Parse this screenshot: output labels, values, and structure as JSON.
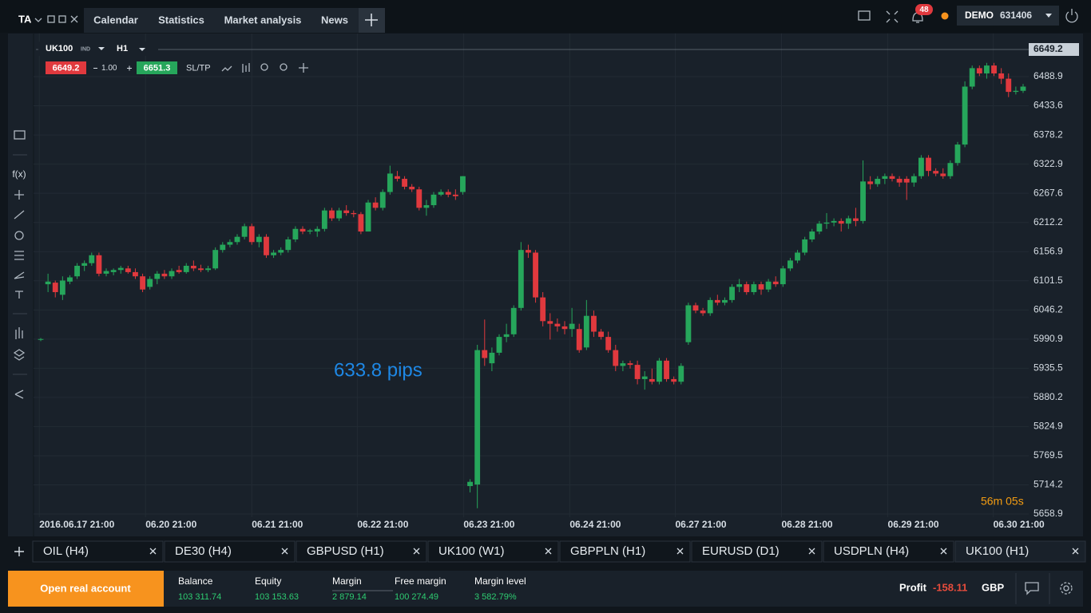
{
  "chart_data": {
    "type": "candlestick",
    "up_color": "#26a65b",
    "down_color": "#e0393e",
    "xlim": [
      -0.99,
      135.77
    ],
    "ylim": [
      5652.9,
      6570.7
    ],
    "xticks": [
      {
        "value": -0.2,
        "label": "2016.06.17 21:00"
      },
      {
        "value": 14.4,
        "label": "06.20 21:00"
      },
      {
        "value": 29.0,
        "label": "06.21 21:00"
      },
      {
        "value": 43.5,
        "label": "06.22 21:00"
      },
      {
        "value": 58.1,
        "label": "06.23 21:00"
      },
      {
        "value": 72.7,
        "label": "06.24 21:00"
      },
      {
        "value": 87.2,
        "label": "06.27 21:00"
      },
      {
        "value": 101.8,
        "label": "06.28 21:00"
      },
      {
        "value": 116.4,
        "label": "06.29 21:00"
      },
      {
        "value": 130.9,
        "label": "06.30 21:00"
      }
    ],
    "yticks": [
      5658.9,
      5714.2,
      5769.5,
      5824.9,
      5880.2,
      5935.5,
      5990.9,
      6046.2,
      6101.5,
      6156.9,
      6212.2,
      6267.6,
      6322.9,
      6378.2,
      6433.6,
      6488.9
    ],
    "grid": true,
    "x": [
      0,
      1,
      2,
      3,
      4,
      5,
      6,
      7,
      8,
      9,
      10,
      11,
      12,
      13,
      14,
      15,
      16,
      17,
      18,
      19,
      20,
      21,
      22,
      23,
      24,
      25,
      26,
      27,
      28,
      29,
      30,
      31,
      32,
      33,
      34,
      35,
      36,
      37,
      38,
      39,
      40,
      41,
      42,
      43,
      44,
      45,
      46,
      47,
      48,
      49,
      50,
      51,
      52,
      53,
      54,
      55,
      56,
      57,
      58,
      59,
      60,
      61,
      62,
      63,
      64,
      65,
      66,
      67,
      68,
      69,
      70,
      71,
      72,
      73,
      74,
      75,
      76,
      77,
      78,
      79,
      80,
      81,
      82,
      83,
      84,
      85,
      86,
      87,
      88,
      89,
      90,
      91,
      92,
      93,
      94,
      95,
      96,
      97,
      98,
      99,
      100,
      101,
      102,
      103,
      104,
      105,
      106,
      107,
      108,
      109,
      110,
      111,
      112,
      113,
      114,
      115,
      116,
      117,
      118,
      119,
      120,
      121,
      122,
      123,
      124,
      125,
      126,
      127,
      128,
      129,
      130,
      131,
      132,
      133,
      134,
      135
    ],
    "ohlc": [
      [
        5990,
        5993,
        5987,
        5991
      ],
      [
        6095,
        6115,
        6080,
        6100
      ],
      [
        6098,
        6102,
        6070,
        6080
      ],
      [
        6075,
        6110,
        6065,
        6102
      ],
      [
        6100,
        6112,
        6095,
        6108
      ],
      [
        6110,
        6135,
        6105,
        6130
      ],
      [
        6130,
        6140,
        6120,
        6135
      ],
      [
        6135,
        6155,
        6130,
        6150
      ],
      [
        6150,
        6155,
        6110,
        6115
      ],
      [
        6115,
        6125,
        6110,
        6120
      ],
      [
        6118,
        6125,
        6112,
        6122
      ],
      [
        6122,
        6130,
        6115,
        6126
      ],
      [
        6125,
        6130,
        6115,
        6118
      ],
      [
        6118,
        6125,
        6105,
        6110
      ],
      [
        6110,
        6115,
        6080,
        6085
      ],
      [
        6090,
        6110,
        6085,
        6105
      ],
      [
        6105,
        6120,
        6095,
        6115
      ],
      [
        6115,
        6122,
        6105,
        6110
      ],
      [
        6110,
        6125,
        6105,
        6120
      ],
      [
        6122,
        6130,
        6115,
        6118
      ],
      [
        6118,
        6135,
        6115,
        6130
      ],
      [
        6130,
        6140,
        6120,
        6125
      ],
      [
        6125,
        6132,
        6118,
        6122
      ],
      [
        6122,
        6130,
        6118,
        6125
      ],
      [
        6125,
        6165,
        6122,
        6160
      ],
      [
        6160,
        6175,
        6155,
        6170
      ],
      [
        6170,
        6180,
        6165,
        6175
      ],
      [
        6175,
        6190,
        6170,
        6185
      ],
      [
        6185,
        6210,
        6180,
        6205
      ],
      [
        6205,
        6210,
        6170,
        6175
      ],
      [
        6175,
        6190,
        6165,
        6185
      ],
      [
        6185,
        6190,
        6145,
        6150
      ],
      [
        6150,
        6160,
        6145,
        6155
      ],
      [
        6155,
        6165,
        6150,
        6160
      ],
      [
        6160,
        6185,
        6155,
        6180
      ],
      [
        6180,
        6205,
        6175,
        6200
      ],
      [
        6200,
        6205,
        6190,
        6195
      ],
      [
        6195,
        6200,
        6190,
        6197
      ],
      [
        6195,
        6205,
        6185,
        6200
      ],
      [
        6200,
        6240,
        6195,
        6235
      ],
      [
        6235,
        6240,
        6215,
        6220
      ],
      [
        6220,
        6240,
        6215,
        6235
      ],
      [
        6235,
        6245,
        6225,
        6230
      ],
      [
        6230,
        6235,
        6222,
        6228
      ],
      [
        6228,
        6232,
        6190,
        6195
      ],
      [
        6195,
        6255,
        6195,
        6250
      ],
      [
        6250,
        6260,
        6235,
        6240
      ],
      [
        6240,
        6275,
        6235,
        6270
      ],
      [
        6270,
        6320,
        6265,
        6305
      ],
      [
        6300,
        6310,
        6290,
        6295
      ],
      [
        6295,
        6300,
        6275,
        6280
      ],
      [
        6280,
        6285,
        6270,
        6275
      ],
      [
        6275,
        6280,
        6235,
        6240
      ],
      [
        6240,
        6255,
        6225,
        6245
      ],
      [
        6245,
        6270,
        6240,
        6265
      ],
      [
        6265,
        6275,
        6262,
        6270
      ],
      [
        6270,
        6275,
        6260,
        6265
      ],
      [
        6265,
        6275,
        6255,
        6262
      ],
      [
        6270,
        6300,
        6265,
        6300
      ],
      [
        5712,
        5725,
        5700,
        5720
      ],
      [
        5715,
        5980,
        5670,
        5970
      ],
      [
        5970,
        6028,
        5940,
        5955
      ],
      [
        5945,
        5975,
        5930,
        5965
      ],
      [
        5965,
        6000,
        5960,
        5995
      ],
      [
        5995,
        6020,
        5985,
        6000
      ],
      [
        6000,
        6055,
        5995,
        6050
      ],
      [
        6050,
        6175,
        6045,
        6160
      ],
      [
        6160,
        6170,
        6145,
        6155
      ],
      [
        6155,
        6160,
        6060,
        6070
      ],
      [
        6070,
        6080,
        6015,
        6025
      ],
      [
        6025,
        6040,
        5990,
        6020
      ],
      [
        6020,
        6030,
        6005,
        6015
      ],
      [
        6015,
        6025,
        6000,
        6010
      ],
      [
        6010,
        6050,
        5995,
        6020
      ],
      [
        6010,
        6020,
        5965,
        5970
      ],
      [
        5975,
        6065,
        5970,
        6035
      ],
      [
        6035,
        6045,
        5995,
        6005
      ],
      [
        6005,
        6010,
        5990,
        5995
      ],
      [
        5995,
        6005,
        5965,
        5970
      ],
      [
        5970,
        5980,
        5930,
        5940
      ],
      [
        5940,
        5950,
        5930,
        5945
      ],
      [
        5945,
        5950,
        5935,
        5942
      ],
      [
        5942,
        5950,
        5905,
        5915
      ],
      [
        5915,
        5930,
        5895,
        5920
      ],
      [
        5915,
        5935,
        5905,
        5910
      ],
      [
        5910,
        5955,
        5905,
        5950
      ],
      [
        5950,
        5955,
        5910,
        5915
      ],
      [
        5915,
        5920,
        5905,
        5910
      ],
      [
        5910,
        5945,
        5905,
        5940
      ],
      [
        5985,
        6060,
        5980,
        6055
      ],
      [
        6055,
        6060,
        6040,
        6045
      ],
      [
        6045,
        6050,
        6035,
        6040
      ],
      [
        6040,
        6070,
        6035,
        6065
      ],
      [
        6065,
        6075,
        6055,
        6060
      ],
      [
        6060,
        6070,
        6055,
        6065
      ],
      [
        6065,
        6095,
        6060,
        6090
      ],
      [
        6090,
        6105,
        6080,
        6095
      ],
      [
        6095,
        6100,
        6075,
        6080
      ],
      [
        6080,
        6100,
        6075,
        6095
      ],
      [
        6095,
        6100,
        6075,
        6085
      ],
      [
        6085,
        6105,
        6080,
        6100
      ],
      [
        6100,
        6110,
        6090,
        6095
      ],
      [
        6095,
        6130,
        6090,
        6125
      ],
      [
        6125,
        6145,
        6120,
        6140
      ],
      [
        6140,
        6160,
        6135,
        6155
      ],
      [
        6155,
        6185,
        6150,
        6180
      ],
      [
        6180,
        6200,
        6175,
        6195
      ],
      [
        6195,
        6215,
        6190,
        6210
      ],
      [
        6210,
        6230,
        6200,
        6212
      ],
      [
        6212,
        6220,
        6205,
        6215
      ],
      [
        6215,
        6220,
        6195,
        6210
      ],
      [
        6210,
        6225,
        6200,
        6220
      ],
      [
        6220,
        6240,
        6205,
        6215
      ],
      [
        6215,
        6330,
        6210,
        6290
      ],
      [
        6290,
        6300,
        6275,
        6285
      ],
      [
        6285,
        6300,
        6280,
        6295
      ],
      [
        6295,
        6305,
        6285,
        6300
      ],
      [
        6300,
        6305,
        6290,
        6295
      ],
      [
        6295,
        6300,
        6280,
        6288
      ],
      [
        6295,
        6300,
        6255,
        6288
      ],
      [
        6288,
        6305,
        6280,
        6300
      ],
      [
        6300,
        6340,
        6295,
        6335
      ],
      [
        6335,
        6340,
        6300,
        6310
      ],
      [
        6310,
        6315,
        6300,
        6305
      ],
      [
        6305,
        6315,
        6295,
        6300
      ],
      [
        6300,
        6330,
        6295,
        6325
      ],
      [
        6325,
        6365,
        6320,
        6360
      ],
      [
        6360,
        6480,
        6355,
        6470
      ],
      [
        6470,
        6510,
        6465,
        6505
      ],
      [
        6505,
        6510,
        6490,
        6495
      ],
      [
        6495,
        6515,
        6485,
        6510
      ],
      [
        6510,
        6515,
        6490,
        6495
      ],
      [
        6495,
        6505,
        6475,
        6485
      ],
      [
        6485,
        6495,
        6450,
        6460
      ],
      [
        6460,
        6470,
        6455,
        6462
      ],
      [
        6462,
        6475,
        6458,
        6470
      ]
    ]
  },
  "ui": {
    "top_menu": {
      "ta": "TA",
      "tabs": [
        "Calendar",
        "Statistics",
        "Market analysis",
        "News"
      ],
      "notifications": "48",
      "account_type": "DEMO",
      "account_number": "631406"
    },
    "toolbar": {
      "symbol": "UK100",
      "symbol_class": "IND",
      "timeframe": "H1",
      "sell_price": "6649.2",
      "volume": "1.00",
      "buy_price": "6651.3",
      "sl_tp": "SL/TP",
      "fx": "f(x)"
    },
    "chart_overlay": {
      "current_price": "6649.2",
      "measure": "633.8 pips",
      "countdown": "56m 05s"
    },
    "instrument_tabs": [
      "OIL (H4)",
      "DE30 (H4)",
      "GBPUSD (H1)",
      "UK100 (W1)",
      "GBPPLN (H1)",
      "EURUSD (D1)",
      "USDPLN (H4)",
      "UK100 (H1)"
    ],
    "footer": {
      "open_account": "Open real account",
      "stats": [
        {
          "label": "Balance",
          "value": "103 311.74"
        },
        {
          "label": "Equity",
          "value": "103 153.63"
        },
        {
          "label": "Margin",
          "value": "2 879.14"
        },
        {
          "label": "Free margin",
          "value": "100 274.49"
        },
        {
          "label": "Margin level",
          "value": "3 582.79%"
        }
      ],
      "profit_label": "Profit",
      "profit_value": "-158.11",
      "profit_currency": "GBP"
    }
  }
}
